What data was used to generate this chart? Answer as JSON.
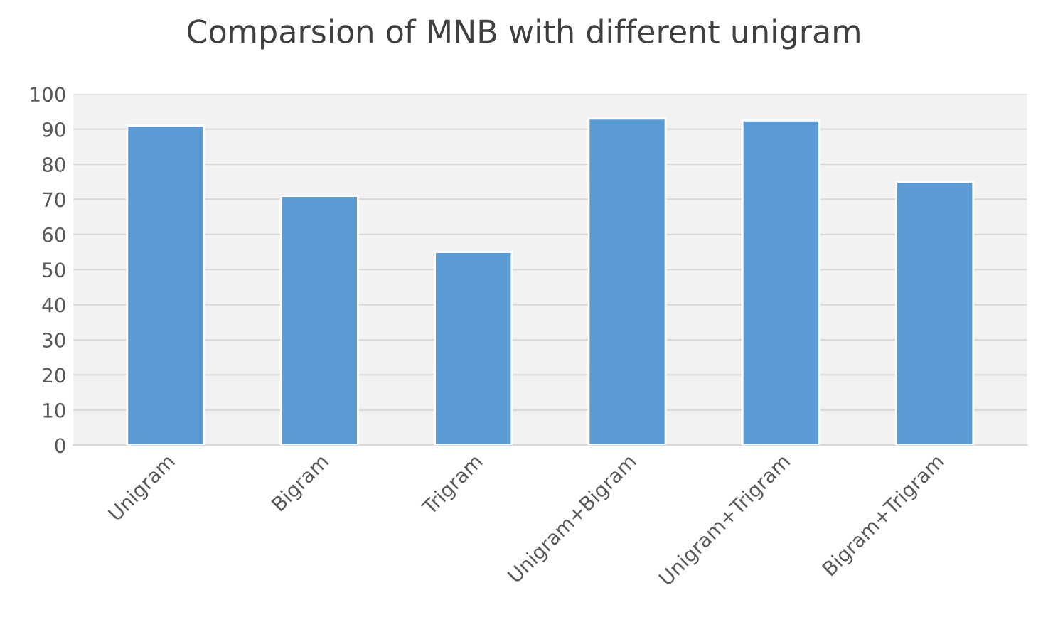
{
  "chart_data": {
    "type": "bar",
    "title": "Comparsion of MNB with different unigram",
    "categories": [
      "Unigram",
      "Bigram",
      "Trigram",
      "Unigram+Bigram",
      "Unigram+Trigram",
      "Bigram+Trigram"
    ],
    "values": [
      91,
      71,
      55,
      93,
      92.5,
      75
    ],
    "color": "#5b9bd5",
    "ylim": [
      0,
      100
    ],
    "yticks": [
      0,
      10,
      20,
      30,
      40,
      50,
      60,
      70,
      80,
      90,
      100
    ],
    "grid": "y"
  }
}
